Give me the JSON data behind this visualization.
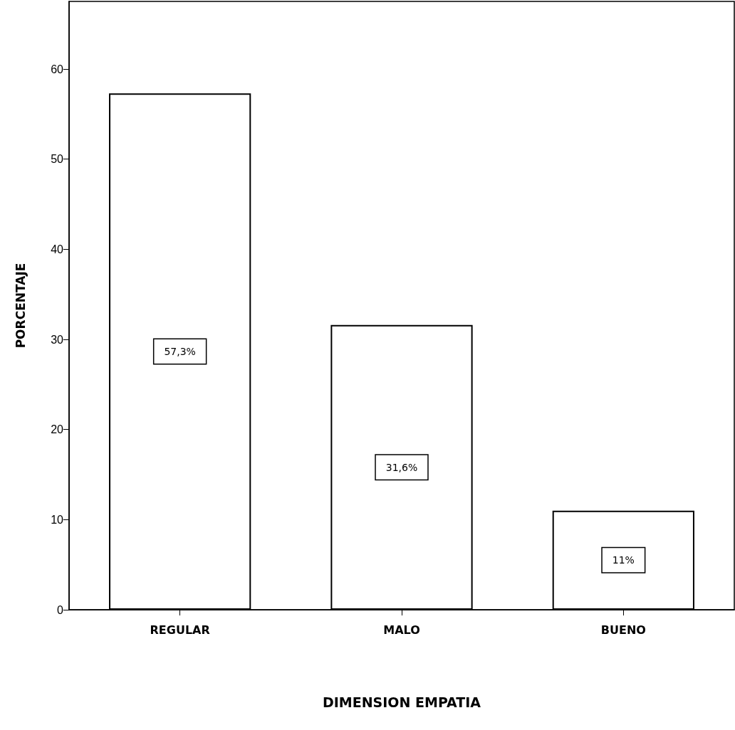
{
  "chart_data": {
    "type": "bar",
    "xlabel": "DIMENSION EMPATIA",
    "ylabel": "PORCENTAJE",
    "categories": [
      "REGULAR",
      "MALO",
      "BUENO"
    ],
    "values": [
      57.3,
      31.6,
      11
    ],
    "value_labels": [
      "57,3%",
      "31,6%",
      "11%"
    ],
    "color": "#ffffff",
    "ylim": [
      0,
      67.5
    ],
    "yticks": [
      0,
      10,
      20,
      30,
      40,
      50,
      60
    ],
    "grid": false
  }
}
